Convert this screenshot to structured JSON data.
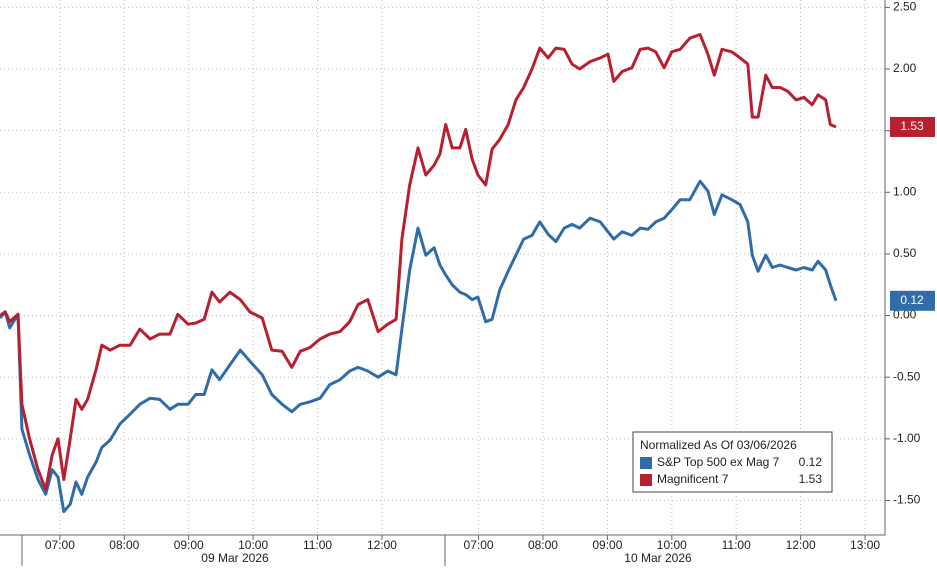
{
  "chart_data": {
    "type": "line",
    "x": [
      6.07,
      6.15,
      6.22,
      6.35,
      6.41,
      6.53,
      6.66,
      6.78,
      6.88,
      6.97,
      7.06,
      7.16,
      7.25,
      7.34,
      7.43,
      7.56,
      7.65,
      7.78,
      7.93,
      8.09,
      8.24,
      8.4,
      8.55,
      8.71,
      8.83,
      8.99,
      9.11,
      9.24,
      9.36,
      9.48,
      9.64,
      9.8,
      9.95,
      10.14,
      10.29,
      10.45,
      10.6,
      10.73,
      10.88,
      11.04,
      11.19,
      11.35,
      11.5,
      11.63,
      11.78,
      11.94,
      12.09,
      12.22,
      12.31,
      12.43,
      12.56,
      12.68,
      12.81,
      12.9,
      12.99,
      13.09,
      13.21,
      13.3,
      13.4,
      13.49,
      13.61,
      13.71,
      13.83,
      13.96,
      14.08,
      14.2,
      14.33,
      14.45,
      14.58,
      14.7,
      14.83,
      14.95,
      15.07,
      15.23,
      15.39,
      15.51,
      15.6,
      15.73,
      15.88,
      16.01,
      16.13,
      16.25,
      16.38,
      16.5,
      16.63,
      16.78,
      16.94,
      17.06,
      17.16,
      17.28,
      17.43,
      17.56,
      17.68,
      17.75,
      17.84,
      17.96,
      18.06,
      18.18,
      18.3,
      18.43,
      18.55,
      18.68,
      18.77,
      18.89,
      18.96,
      19.05
    ],
    "series": [
      {
        "name": "S&P Top 500 ex Mag 7",
        "color": "#2f6ca8",
        "values": [
          -0.02,
          0.03,
          -0.1,
          0.01,
          -0.92,
          -1.13,
          -1.33,
          -1.45,
          -1.25,
          -1.31,
          -1.59,
          -1.53,
          -1.35,
          -1.45,
          -1.31,
          -1.19,
          -1.07,
          -1.01,
          -0.88,
          -0.8,
          -0.72,
          -0.67,
          -0.68,
          -0.76,
          -0.72,
          -0.72,
          -0.64,
          -0.64,
          -0.44,
          -0.52,
          -0.4,
          -0.28,
          -0.37,
          -0.48,
          -0.64,
          -0.72,
          -0.78,
          -0.72,
          -0.7,
          -0.67,
          -0.56,
          -0.52,
          -0.45,
          -0.42,
          -0.45,
          -0.5,
          -0.45,
          -0.48,
          -0.11,
          0.37,
          0.71,
          0.49,
          0.55,
          0.41,
          0.33,
          0.25,
          0.19,
          0.17,
          0.13,
          0.15,
          -0.05,
          -0.03,
          0.21,
          0.36,
          0.49,
          0.62,
          0.65,
          0.76,
          0.66,
          0.6,
          0.71,
          0.74,
          0.71,
          0.79,
          0.76,
          0.68,
          0.62,
          0.68,
          0.65,
          0.71,
          0.7,
          0.76,
          0.79,
          0.86,
          0.94,
          0.94,
          1.09,
          1.01,
          0.82,
          0.98,
          0.94,
          0.9,
          0.76,
          0.49,
          0.36,
          0.49,
          0.39,
          0.41,
          0.39,
          0.37,
          0.39,
          0.37,
          0.44,
          0.37,
          0.25,
          0.12
        ]
      },
      {
        "name": "Magnificent 7",
        "color": "#b7202e",
        "values": [
          0.0,
          0.03,
          -0.05,
          0.01,
          -0.72,
          -1.0,
          -1.25,
          -1.41,
          -1.13,
          -1.0,
          -1.33,
          -1.0,
          -0.68,
          -0.76,
          -0.68,
          -0.44,
          -0.24,
          -0.28,
          -0.24,
          -0.24,
          -0.11,
          -0.19,
          -0.15,
          -0.15,
          0.01,
          -0.07,
          -0.06,
          -0.03,
          0.19,
          0.11,
          0.19,
          0.13,
          0.03,
          -0.02,
          -0.28,
          -0.29,
          -0.42,
          -0.29,
          -0.26,
          -0.19,
          -0.15,
          -0.13,
          -0.05,
          0.09,
          0.13,
          -0.13,
          -0.07,
          -0.03,
          0.62,
          1.06,
          1.36,
          1.14,
          1.22,
          1.31,
          1.55,
          1.36,
          1.36,
          1.51,
          1.27,
          1.14,
          1.06,
          1.35,
          1.43,
          1.55,
          1.75,
          1.85,
          2.0,
          2.17,
          2.09,
          2.17,
          2.16,
          2.04,
          2.0,
          2.06,
          2.09,
          2.12,
          1.9,
          1.98,
          2.01,
          2.16,
          2.17,
          2.14,
          2.01,
          2.14,
          2.16,
          2.25,
          2.28,
          2.12,
          1.95,
          2.16,
          2.14,
          2.09,
          2.04,
          1.61,
          1.61,
          1.95,
          1.85,
          1.85,
          1.82,
          1.75,
          1.77,
          1.71,
          1.79,
          1.75,
          1.55,
          1.53
        ]
      }
    ],
    "xlim": [
      6.07,
      19.81
    ],
    "xticks": [
      {
        "value": 7,
        "label": "07:00"
      },
      {
        "value": 8,
        "label": "08:00"
      },
      {
        "value": 9,
        "label": "09:00"
      },
      {
        "value": 10,
        "label": "10:00"
      },
      {
        "value": 11,
        "label": "11:00"
      },
      {
        "value": 12,
        "label": "12:00"
      },
      {
        "value": 13.5,
        "label": "07:00"
      },
      {
        "value": 14.5,
        "label": "08:00"
      },
      {
        "value": 15.5,
        "label": "09:00"
      },
      {
        "value": 16.5,
        "label": "10:00"
      },
      {
        "value": 17.5,
        "label": "11:00"
      },
      {
        "value": 18.5,
        "label": "12:00"
      },
      {
        "value": 19.5,
        "label": "13:00"
      }
    ],
    "dates": [
      "09 Mar 2026",
      "10 Mar 2026"
    ],
    "ylim": [
      -1.78,
      2.56
    ],
    "yticks": [
      {
        "value": -1.5,
        "label": "-1.50"
      },
      {
        "value": -1,
        "label": "-1.00"
      },
      {
        "value": -0.5,
        "label": "-0.50"
      },
      {
        "value": 0,
        "label": "0.00"
      },
      {
        "value": 0.5,
        "label": "0.50"
      },
      {
        "value": 1,
        "label": "1.00"
      },
      {
        "value": 1.5,
        "label": "1.50"
      },
      {
        "value": 2,
        "label": "2.00"
      },
      {
        "value": 2.5,
        "label": "2.50"
      }
    ],
    "grid": true,
    "legend_title": "Normalized As Of 03/06/2026",
    "legend_position": "bottom-right"
  }
}
